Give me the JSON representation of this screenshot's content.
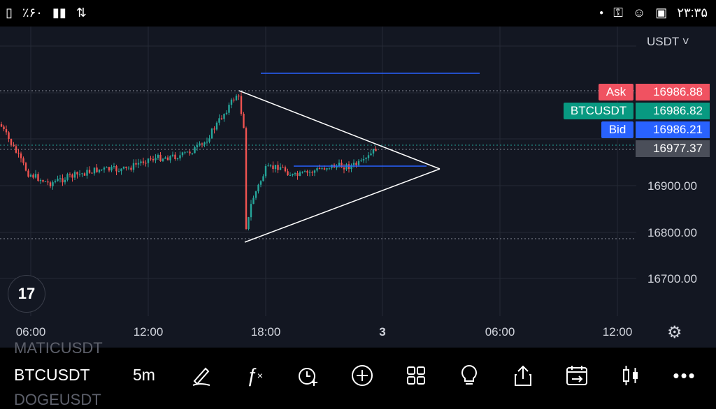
{
  "status_bar": {
    "left_battery_text": "٪۶۰",
    "time": "۲۳:۳۵",
    "icons": [
      "battery-icon",
      "signal-icon",
      "data-arrows-icon",
      "dot-icon",
      "key-icon",
      "face-icon",
      "image-icon"
    ]
  },
  "chart": {
    "currency_label": "USDT ˅",
    "y_axis_labels": [
      "16900.00",
      "16800.00",
      "16700.00"
    ],
    "x_axis_labels": [
      "06:00",
      "12:00",
      "18:00",
      "3",
      "06:00",
      "12:00"
    ],
    "price_tags": [
      {
        "label": "Ask",
        "value": "16986.88",
        "label_color": "#f05261",
        "value_color": "#f05261"
      },
      {
        "label": "BTCUSDT",
        "value": "16986.82",
        "label_color": "#089981",
        "value_color": "#089981"
      },
      {
        "label": "Bid",
        "value": "16986.21",
        "label_color": "#2962ff",
        "value_color": "#2962ff"
      },
      {
        "label": "",
        "value": "16977.37",
        "label_color": "",
        "value_color": "#4a4e59"
      }
    ],
    "colors": {
      "up": "#26a69a",
      "down": "#ef5350",
      "background": "#131722",
      "grid": "#252a35",
      "drawing": "#ffffff",
      "hline": "#2962ff"
    },
    "logo_text": "17"
  },
  "toolbar": {
    "ghost_top": "MATICUSDT",
    "symbol": "BTCUSDT",
    "ghost_bottom": "DOGEUSDT",
    "timeframe": "5m",
    "icons": [
      "drawing-icon",
      "indicators-icon",
      "alert-icon",
      "add-icon",
      "layout-icon",
      "ideas-icon",
      "share-icon",
      "replay-icon",
      "chart-type-icon",
      "more-icon"
    ]
  }
}
